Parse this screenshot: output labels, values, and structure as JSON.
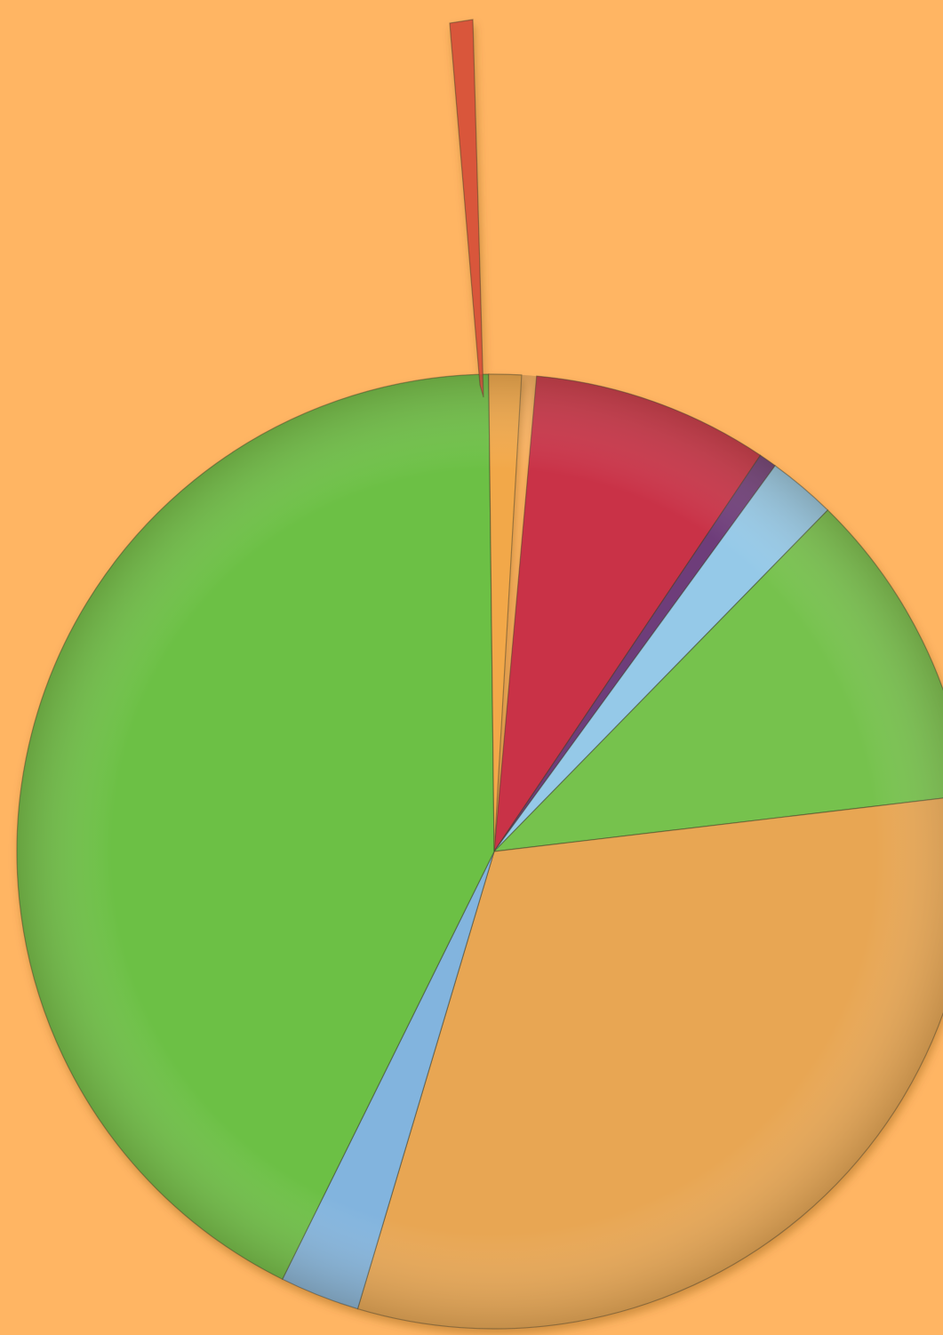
{
  "background_color": "#FFB563",
  "chart_data": {
    "type": "pie",
    "title": "",
    "start_angle_deg": 5.1,
    "direction": "clockwise",
    "legend": "none",
    "slices": [
      {
        "value": 8.0,
        "color": "#C93347",
        "exploded": false
      },
      {
        "value": 0.6,
        "color": "#6E3E7A",
        "exploded": false
      },
      {
        "value": 2.3,
        "color": "#95C9E8",
        "exploded": false
      },
      {
        "value": 10.8,
        "color": "#76C24E",
        "exploded": false
      },
      {
        "value": 31.5,
        "color": "#E8A653",
        "exploded": false
      },
      {
        "value": 2.7,
        "color": "#82B4DE",
        "exploded": false
      },
      {
        "value": 42.5,
        "color": "#6CC044",
        "exploded": false
      },
      {
        "value": 1.1,
        "color": "#F2A849",
        "exploded": false
      },
      {
        "value": 0.5,
        "color": "#D9573A",
        "exploded": true
      }
    ]
  }
}
